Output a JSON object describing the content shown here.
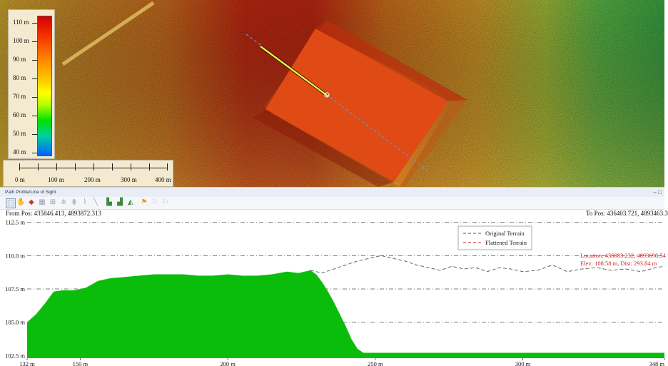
{
  "legend": {
    "labels": [
      "110 m",
      "100 m",
      "90 m",
      "80 m",
      "70 m",
      "60 m",
      "50 m",
      "40 m"
    ]
  },
  "scale_bar": {
    "labels": [
      "0 m",
      "100 m",
      "200 m",
      "300 m",
      "400 m"
    ]
  },
  "panel": {
    "title": "Path Profile/Line of Sight",
    "window_controls": "– □"
  },
  "toolbar": {
    "icons": [
      "select-icon",
      "pan-icon",
      "terrain-icon",
      "grid-icon",
      "zoom-icon",
      "path-icon",
      "path-edit-icon",
      "measure-icon",
      "line-icon",
      "export-icon",
      "chart-icon",
      "profile-icon",
      "flag-icon",
      "flag-left-icon",
      "flag-right-icon"
    ]
  },
  "positions": {
    "from": "From Pos: 435846.413, 4893872.313",
    "to": "To Pos: 436403.721, 4893463.3"
  },
  "chart_data": {
    "type": "area",
    "xlim": [
      132,
      348
    ],
    "ylim": [
      102.3,
      112.7
    ],
    "y_ticks": [
      112.5,
      110.0,
      107.5,
      105.0,
      102.5
    ],
    "y_tick_labels": [
      "112.5 m",
      "110.0 m",
      "107.5 m",
      "105.0 m",
      "102.5 m"
    ],
    "x_ticks": [
      132,
      150,
      200,
      250,
      300,
      348
    ],
    "x_tick_labels": [
      "132 m",
      "150 m",
      "200 m",
      "250 m",
      "300 m",
      "348 m"
    ],
    "grid": true,
    "legend_position": "top-right",
    "series": [
      {
        "name": "Original Terrain",
        "style": "dashed",
        "color": "#555555",
        "x": [
          132,
          135,
          138,
          141,
          144,
          148,
          152,
          156,
          160,
          165,
          170,
          175,
          180,
          185,
          190,
          195,
          200,
          205,
          210,
          215,
          220,
          224,
          228,
          232,
          236,
          240,
          244,
          248,
          252,
          256,
          260,
          264,
          268,
          272,
          276,
          280,
          284,
          288,
          292,
          296,
          300,
          305,
          310,
          315,
          320,
          325,
          330,
          335,
          340,
          345,
          348
        ],
        "values": [
          105,
          105.6,
          106.4,
          107.3,
          107.4,
          107.4,
          107.6,
          108.1,
          108.3,
          108.4,
          108.5,
          108.6,
          108.6,
          108.6,
          108.5,
          108.5,
          108.6,
          108.5,
          108.5,
          108.6,
          108.8,
          108.7,
          108.9,
          108.7,
          109,
          109.3,
          109.6,
          109.8,
          110,
          109.8,
          109.6,
          109.3,
          109.1,
          108.9,
          109.2,
          109.0,
          109.1,
          108.8,
          109.1,
          109.0,
          108.8,
          108.9,
          109.3,
          108.8,
          109.0,
          109.1,
          108.9,
          109.0,
          108.8,
          109.1,
          109.2
        ]
      },
      {
        "name": "Flattened Terrain",
        "style": "dashed",
        "color": "#cc2222",
        "x": [
          132,
          135,
          138,
          141,
          144,
          148,
          152,
          156,
          160,
          165,
          170,
          175,
          180,
          185,
          190,
          195,
          200,
          205,
          210,
          215,
          220,
          224,
          228,
          230,
          232,
          234,
          236,
          238,
          240,
          242,
          244,
          246,
          248,
          252,
          260,
          280,
          300,
          320,
          348
        ],
        "values": [
          105,
          105.6,
          106.4,
          107.3,
          107.4,
          107.4,
          107.6,
          108.1,
          108.3,
          108.4,
          108.5,
          108.6,
          108.6,
          108.6,
          108.5,
          108.5,
          108.6,
          108.5,
          108.5,
          108.6,
          108.8,
          108.7,
          108.9,
          108.6,
          108.0,
          107.3,
          106.5,
          105.6,
          104.7,
          103.7,
          103.0,
          102.7,
          102.7,
          102.7,
          102.7,
          102.7,
          102.7,
          102.7,
          102.7
        ]
      }
    ],
    "annotation": {
      "line1": "Location: 436083.232, 4893698.54",
      "line2": "Elev: 108.58 m, Dist: 293.84 m",
      "color": "#cc2222"
    }
  }
}
